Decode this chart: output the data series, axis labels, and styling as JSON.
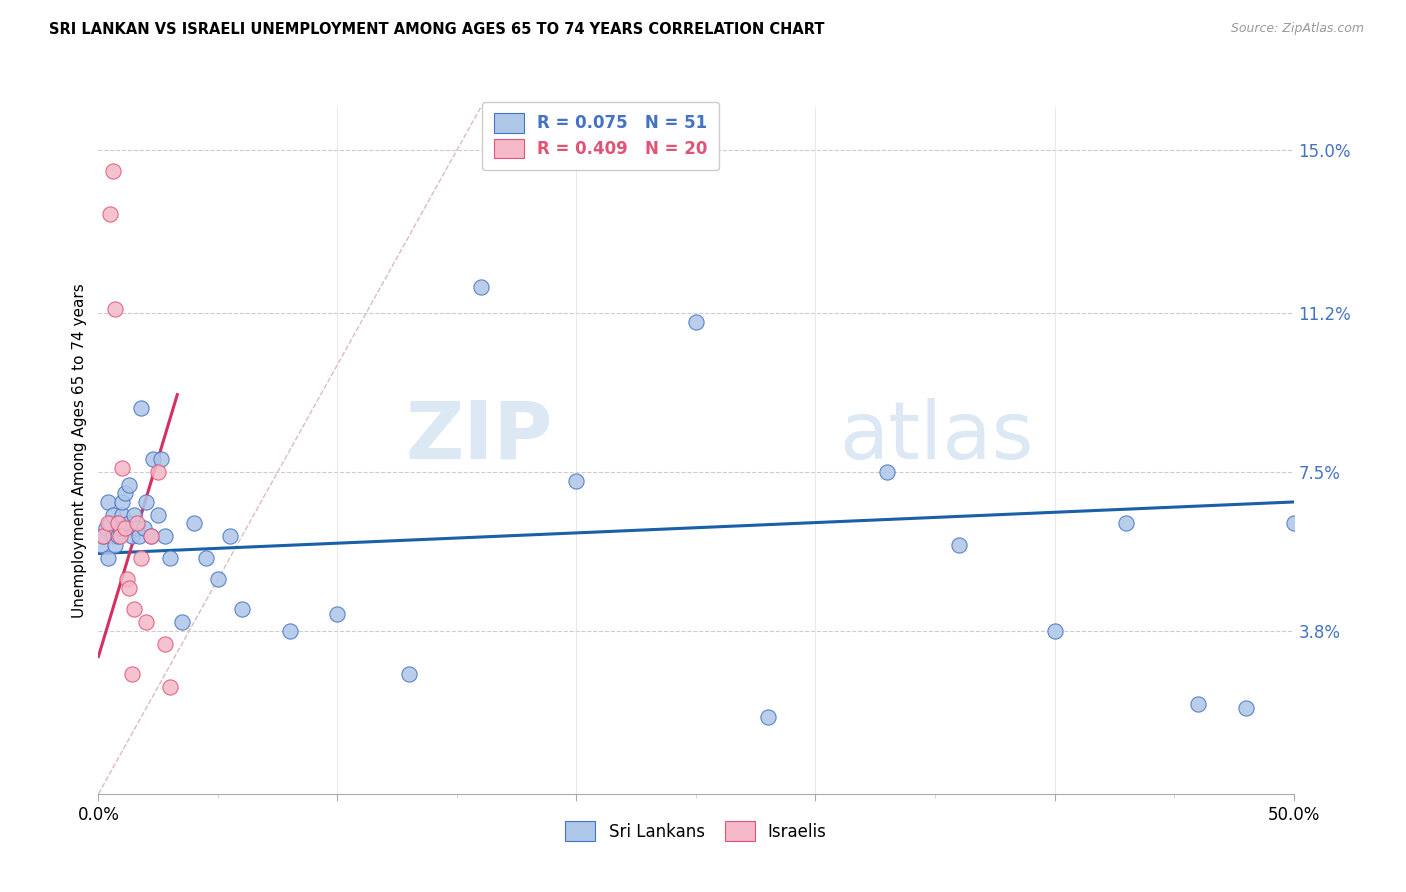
{
  "title": "SRI LANKAN VS ISRAELI UNEMPLOYMENT AMONG AGES 65 TO 74 YEARS CORRELATION CHART",
  "source": "Source: ZipAtlas.com",
  "ylabel": "Unemployment Among Ages 65 to 74 years",
  "xlim": [
    0,
    0.5
  ],
  "ylim": [
    0,
    0.16
  ],
  "ytick_positions": [
    0.038,
    0.075,
    0.112,
    0.15
  ],
  "ytick_labels": [
    "3.8%",
    "7.5%",
    "11.2%",
    "15.0%"
  ],
  "legend_r_blue": "R = 0.075",
  "legend_n_blue": "N = 51",
  "legend_r_pink": "R = 0.409",
  "legend_n_pink": "N = 20",
  "blue_fill": "#aec6e8",
  "blue_edge": "#4472c4",
  "pink_fill": "#f4b8c8",
  "pink_edge": "#e05575",
  "blue_line_color": "#1a5fa8",
  "pink_line_color": "#d43060",
  "diag_color": "#ddbbbb",
  "watermark_color": "#dce8f3",
  "sri_lankan_x": [
    0.001,
    0.002,
    0.003,
    0.004,
    0.004,
    0.005,
    0.006,
    0.006,
    0.007,
    0.008,
    0.008,
    0.009,
    0.01,
    0.01,
    0.011,
    0.012,
    0.013,
    0.013,
    0.014,
    0.015,
    0.016,
    0.017,
    0.018,
    0.019,
    0.02,
    0.022,
    0.023,
    0.025,
    0.026,
    0.028,
    0.03,
    0.035,
    0.04,
    0.045,
    0.05,
    0.055,
    0.06,
    0.08,
    0.1,
    0.13,
    0.16,
    0.2,
    0.25,
    0.28,
    0.33,
    0.36,
    0.4,
    0.43,
    0.46,
    0.48,
    0.5
  ],
  "sri_lankan_y": [
    0.058,
    0.06,
    0.062,
    0.055,
    0.068,
    0.063,
    0.06,
    0.065,
    0.058,
    0.06,
    0.063,
    0.062,
    0.065,
    0.068,
    0.07,
    0.062,
    0.063,
    0.072,
    0.06,
    0.065,
    0.062,
    0.06,
    0.09,
    0.062,
    0.068,
    0.06,
    0.078,
    0.065,
    0.078,
    0.06,
    0.055,
    0.04,
    0.063,
    0.055,
    0.05,
    0.06,
    0.043,
    0.038,
    0.042,
    0.028,
    0.118,
    0.073,
    0.11,
    0.018,
    0.075,
    0.058,
    0.038,
    0.063,
    0.021,
    0.02,
    0.063
  ],
  "israeli_x": [
    0.002,
    0.004,
    0.005,
    0.006,
    0.007,
    0.008,
    0.009,
    0.01,
    0.011,
    0.012,
    0.013,
    0.014,
    0.015,
    0.016,
    0.018,
    0.02,
    0.022,
    0.025,
    0.028,
    0.03
  ],
  "israeli_y": [
    0.06,
    0.063,
    0.135,
    0.145,
    0.113,
    0.063,
    0.06,
    0.076,
    0.062,
    0.05,
    0.048,
    0.028,
    0.043,
    0.063,
    0.055,
    0.04,
    0.06,
    0.075,
    0.035,
    0.025
  ],
  "blue_trend_x": [
    0.0,
    0.5
  ],
  "blue_trend_y_start": 0.056,
  "blue_trend_y_end": 0.068,
  "pink_trend_x_start": 0.0,
  "pink_trend_x_end": 0.033,
  "pink_trend_y_start": 0.032,
  "pink_trend_y_end": 0.093
}
